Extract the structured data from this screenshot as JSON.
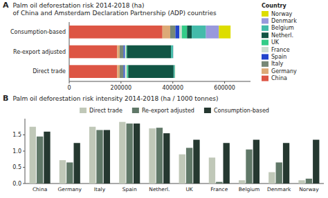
{
  "chart_data": [
    {
      "type": "bar",
      "orientation": "horizontal",
      "stacked": true,
      "title": "Palm oil deforestation risk 2014-2018 (ha)",
      "subtitle": "of China and Amsterdam Declaration Partnership (ADP) countries",
      "annotations": [
        "A"
      ],
      "legend_title": "Country",
      "legend": "right",
      "grid": false,
      "categories": [
        "Direct trade",
        "Re-export adjusted",
        "Consumption-based"
      ],
      "series": [
        {
          "name": "China",
          "color": "#dd5544",
          "values": [
            185000,
            185000,
            360000
          ]
        },
        {
          "name": "Germany",
          "color": "#ddaa77",
          "values": [
            10000,
            10000,
            30000
          ]
        },
        {
          "name": "Italy",
          "color": "#778877",
          "values": [
            15000,
            15000,
            20000
          ]
        },
        {
          "name": "Spain",
          "color": "#2244cc",
          "values": [
            5000,
            5000,
            15000
          ]
        },
        {
          "name": "France",
          "color": "#ccddd0",
          "values": [
            8000,
            5000,
            10000
          ]
        },
        {
          "name": "UK",
          "color": "#33cc88",
          "values": [
            5000,
            3000,
            20000
          ]
        },
        {
          "name": "Netherl.",
          "color": "#115544",
          "values": [
            175000,
            170000,
            18000
          ]
        },
        {
          "name": "Belgium",
          "color": "#44bbaa",
          "values": [
            5000,
            8000,
            55000
          ]
        },
        {
          "name": "Denmark",
          "color": "#9999dd",
          "values": [
            500,
            1000,
            50000
          ]
        },
        {
          "name": "Norway",
          "color": "#dddd00",
          "values": [
            500,
            200,
            45000
          ]
        }
      ],
      "xlim": [
        0,
        700000
      ],
      "xticks": [
        0,
        200000,
        400000,
        600000
      ]
    },
    {
      "type": "bar",
      "title": "Palm oil deforestation risk intensity 2014-2018 (ha / 1000 tonnes)",
      "annotations": [
        "B"
      ],
      "legend": "top",
      "grid": false,
      "categories": [
        "China",
        "Germany",
        "Italy",
        "Spain",
        "Netherl.",
        "UK",
        "France",
        "Belgium",
        "Denmark",
        "Norway"
      ],
      "series": [
        {
          "name": "Direct trade",
          "color": "#c0c8b8",
          "values": [
            1.75,
            0.72,
            1.75,
            1.9,
            1.7,
            0.9,
            0.8,
            0.1,
            0.35,
            0.1
          ]
        },
        {
          "name": "Re-export adjusted",
          "color": "#607868",
          "values": [
            1.45,
            0.65,
            1.65,
            1.85,
            1.72,
            1.1,
            0.05,
            1.05,
            0.65,
            0.15
          ]
        },
        {
          "name": "Consumption-based",
          "color": "#253830",
          "values": [
            1.6,
            1.25,
            1.65,
            1.85,
            1.55,
            1.35,
            1.25,
            1.35,
            1.25,
            1.35
          ]
        }
      ],
      "ylim": [
        0,
        2.0
      ],
      "yticks": [
        {
          "value": 0,
          "label": "0.0"
        },
        0.5,
        {
          "value": 1,
          "label": "1.0"
        },
        1.5
      ]
    }
  ]
}
